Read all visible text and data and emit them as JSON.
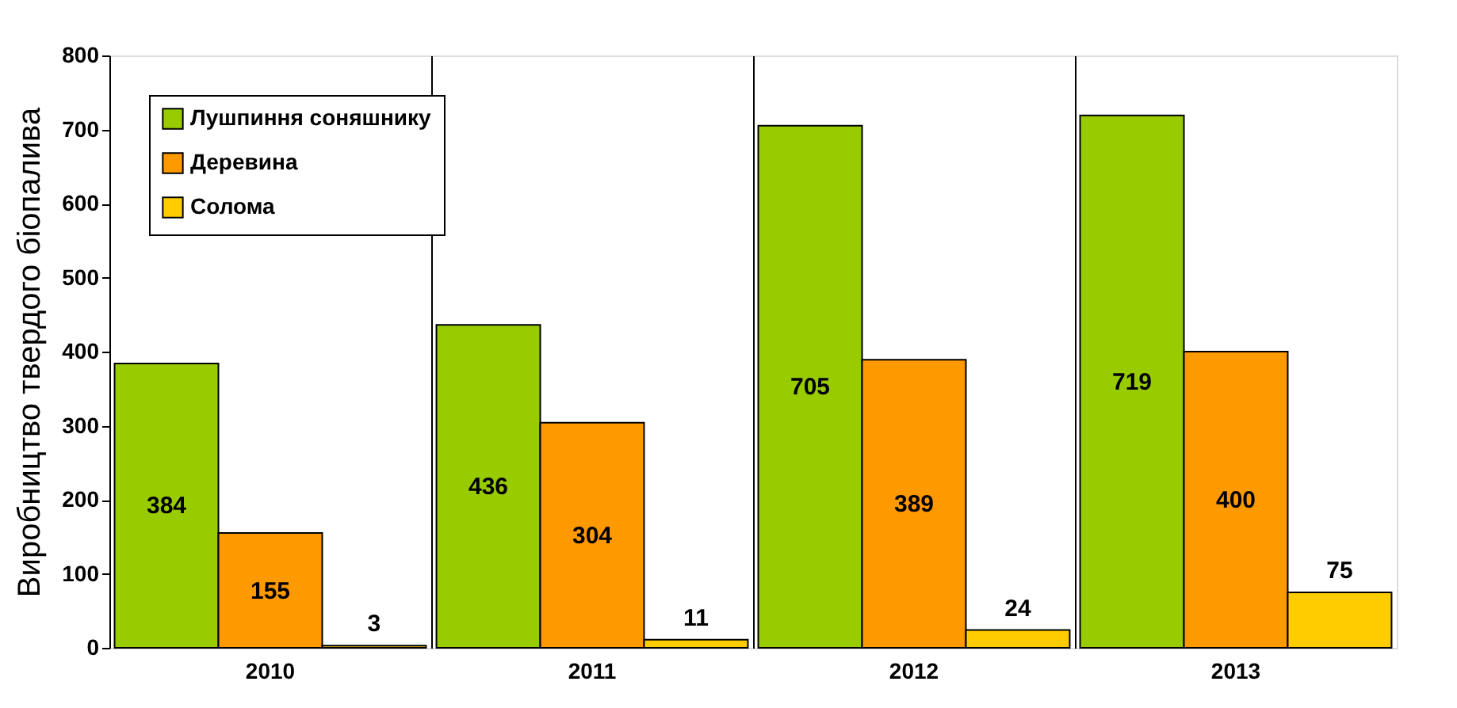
{
  "chart_data": {
    "type": "bar",
    "ylabel": "Виробництво твердого біопалива",
    "categories": [
      "2010",
      "2011",
      "2012",
      "2013"
    ],
    "series": [
      {
        "name": "Лушпиння соняшнику",
        "color": "#99cc00",
        "values": [
          384,
          436,
          705,
          719
        ]
      },
      {
        "name": "Деревина",
        "color": "#ff9900",
        "values": [
          155,
          304,
          389,
          400
        ]
      },
      {
        "name": "Солома",
        "color": "#ffcc00",
        "values": [
          3,
          11,
          24,
          75
        ]
      }
    ],
    "ylim": [
      0,
      800
    ],
    "yticks": [
      0,
      100,
      200,
      300,
      400,
      500,
      600,
      700,
      800
    ],
    "grid": "x",
    "legend": "top left",
    "data_labels": true
  }
}
